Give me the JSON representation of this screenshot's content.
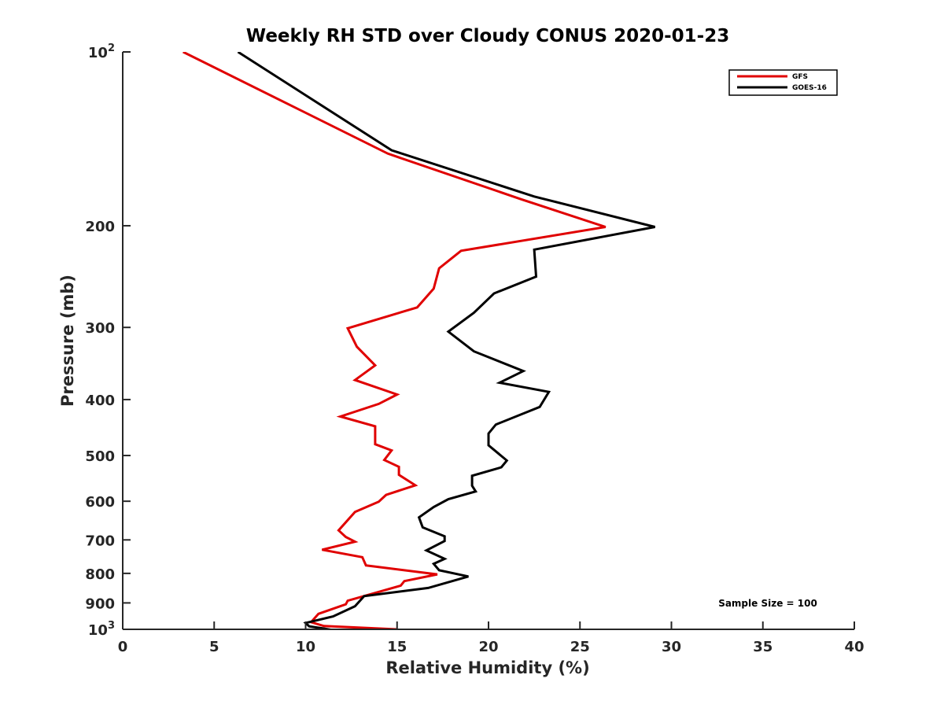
{
  "chart_data": {
    "type": "line",
    "title": "Weekly RH STD over Cloudy CONUS 2020-01-23",
    "xlabel": "Relative Humidity (%)",
    "ylabel": "Pressure (mb)",
    "xlim": [
      0,
      40
    ],
    "ylim": [
      100,
      1000
    ],
    "y_scale": "log",
    "y_reversed": true,
    "grid": false,
    "legend_position": "top-right",
    "xticks": [
      "0",
      "5",
      "10",
      "15",
      "20",
      "25",
      "30",
      "35",
      "40"
    ],
    "xtick_values": [
      0,
      5,
      10,
      15,
      20,
      25,
      30,
      35,
      40
    ],
    "yticks": [
      {
        "value": 100,
        "base": "10",
        "exp": "2"
      },
      {
        "value": 200,
        "label": "200"
      },
      {
        "value": 300,
        "label": "300"
      },
      {
        "value": 400,
        "label": "400"
      },
      {
        "value": 500,
        "label": "500"
      },
      {
        "value": 600,
        "label": "600"
      },
      {
        "value": 700,
        "label": "700"
      },
      {
        "value": 800,
        "label": "800"
      },
      {
        "value": 900,
        "label": "900"
      },
      {
        "value": 1000,
        "base": "10",
        "exp": "3"
      }
    ],
    "annotation": "Sample Size = 100",
    "series": [
      {
        "name": "GFS",
        "color": "#e00000",
        "points": [
          [
            3.3,
            100
          ],
          [
            14.5,
            150
          ],
          [
            21.8,
            180
          ],
          [
            26.4,
            201
          ],
          [
            18.5,
            221
          ],
          [
            17.3,
            237
          ],
          [
            17.0,
            257
          ],
          [
            16.1,
            277
          ],
          [
            12.3,
            301
          ],
          [
            12.8,
            324
          ],
          [
            13.8,
            349
          ],
          [
            12.7,
            370
          ],
          [
            15.0,
            392
          ],
          [
            14.0,
            407
          ],
          [
            11.9,
            428
          ],
          [
            13.8,
            445
          ],
          [
            13.8,
            478
          ],
          [
            14.7,
            490
          ],
          [
            14.3,
            509
          ],
          [
            15.1,
            523
          ],
          [
            15.1,
            540
          ],
          [
            16.0,
            563
          ],
          [
            14.4,
            585
          ],
          [
            14.0,
            601
          ],
          [
            12.7,
            626
          ],
          [
            11.8,
            674
          ],
          [
            12.2,
            692
          ],
          [
            12.7,
            705
          ],
          [
            10.9,
            728
          ],
          [
            13.1,
            750
          ],
          [
            13.3,
            775
          ],
          [
            17.2,
            803
          ],
          [
            15.4,
            825
          ],
          [
            15.2,
            840
          ],
          [
            12.3,
            892
          ],
          [
            12.2,
            905
          ],
          [
            10.7,
            940
          ],
          [
            10.3,
            972
          ],
          [
            11.0,
            987
          ],
          [
            15.0,
            1000
          ],
          [
            14.6,
            1010
          ]
        ]
      },
      {
        "name": "GOES-16",
        "color": "#000000",
        "points": [
          [
            6.3,
            100
          ],
          [
            14.7,
            148
          ],
          [
            22.5,
            178
          ],
          [
            29.1,
            201
          ],
          [
            22.5,
            220
          ],
          [
            22.6,
            245
          ],
          [
            20.3,
            262
          ],
          [
            19.2,
            283
          ],
          [
            17.8,
            305
          ],
          [
            19.2,
            330
          ],
          [
            21.9,
            357
          ],
          [
            20.6,
            374
          ],
          [
            23.3,
            388
          ],
          [
            22.8,
            412
          ],
          [
            20.4,
            442
          ],
          [
            20.0,
            458
          ],
          [
            20.0,
            480
          ],
          [
            21.0,
            510
          ],
          [
            20.7,
            524
          ],
          [
            19.1,
            542
          ],
          [
            19.1,
            564
          ],
          [
            19.3,
            577
          ],
          [
            17.8,
            595
          ],
          [
            17.0,
            614
          ],
          [
            16.2,
            640
          ],
          [
            16.4,
            666
          ],
          [
            17.6,
            690
          ],
          [
            17.6,
            703
          ],
          [
            16.6,
            730
          ],
          [
            17.6,
            755
          ],
          [
            17.0,
            770
          ],
          [
            17.3,
            790
          ],
          [
            18.9,
            810
          ],
          [
            16.7,
            848
          ],
          [
            13.2,
            876
          ],
          [
            12.7,
            912
          ],
          [
            11.5,
            950
          ],
          [
            10.0,
            975
          ],
          [
            10.2,
            988
          ],
          [
            11.0,
            997
          ],
          [
            11.5,
            1003
          ]
        ]
      }
    ]
  }
}
